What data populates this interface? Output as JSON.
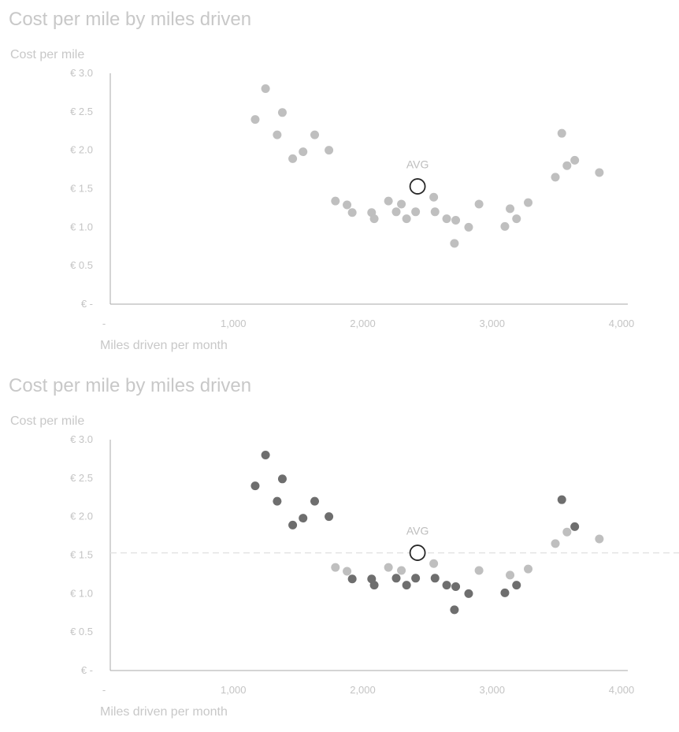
{
  "chart_data": [
    {
      "type": "scatter",
      "title": "Cost per mile by miles driven",
      "xlabel": "Miles driven per month",
      "ylabel": "Cost per mile",
      "xlim": [
        0,
        4000
      ],
      "ylim": [
        0,
        3.0
      ],
      "x_ticks": [
        {
          "value": 0,
          "label": "-"
        },
        {
          "value": 1000,
          "label": "1,000"
        },
        {
          "value": 2000,
          "label": "2,000"
        },
        {
          "value": 3000,
          "label": "3,000"
        },
        {
          "value": 4000,
          "label": "4,000"
        }
      ],
      "y_ticks": [
        {
          "value": 0,
          "label": "€ -"
        },
        {
          "value": 0.5,
          "label": "€ 0.5"
        },
        {
          "value": 1.0,
          "label": "€ 1.0"
        },
        {
          "value": 1.5,
          "label": "€ 1.5"
        },
        {
          "value": 2.0,
          "label": "€ 2.0"
        },
        {
          "value": 2.5,
          "label": "€ 2.5"
        },
        {
          "value": 3.0,
          "label": "€ 3.0"
        }
      ],
      "grid": false,
      "avg": {
        "label": "AVG",
        "x": 2375,
        "y": 1.53
      },
      "show_avg_line": false,
      "point_color": "#bfbfbf",
      "highlight_color": "#6e6e6e",
      "highlight": false,
      "series": [
        {
          "points": [
            [
              1120,
              2.4
            ],
            [
              1200,
              2.8
            ],
            [
              1290,
              2.2
            ],
            [
              1330,
              2.49
            ],
            [
              1410,
              1.89
            ],
            [
              1490,
              1.98
            ],
            [
              1580,
              2.2
            ],
            [
              1690,
              2.0
            ],
            [
              1740,
              1.34
            ],
            [
              1830,
              1.29
            ],
            [
              1870,
              1.19
            ],
            [
              2020,
              1.19
            ],
            [
              2040,
              1.11
            ],
            [
              2150,
              1.34
            ],
            [
              2210,
              1.2
            ],
            [
              2250,
              1.3
            ],
            [
              2290,
              1.11
            ],
            [
              2360,
              1.2
            ],
            [
              2500,
              1.39
            ],
            [
              2510,
              1.2
            ],
            [
              2600,
              1.11
            ],
            [
              2670,
              1.09
            ],
            [
              2660,
              0.79
            ],
            [
              2770,
              1.0
            ],
            [
              2850,
              1.3
            ],
            [
              3050,
              1.01
            ],
            [
              3090,
              1.24
            ],
            [
              3140,
              1.11
            ],
            [
              3230,
              1.32
            ],
            [
              3440,
              1.65
            ],
            [
              3490,
              2.22
            ],
            [
              3530,
              1.8
            ],
            [
              3590,
              1.87
            ],
            [
              3780,
              1.71
            ]
          ]
        }
      ]
    },
    {
      "type": "scatter",
      "title": "Cost per mile by miles driven",
      "xlabel": "Miles driven per month",
      "ylabel": "Cost per mile",
      "xlim": [
        0,
        4000
      ],
      "ylim": [
        0,
        3.0
      ],
      "x_ticks": [
        {
          "value": 0,
          "label": "-"
        },
        {
          "value": 1000,
          "label": "1,000"
        },
        {
          "value": 2000,
          "label": "2,000"
        },
        {
          "value": 3000,
          "label": "3,000"
        },
        {
          "value": 4000,
          "label": "4,000"
        }
      ],
      "y_ticks": [
        {
          "value": 0,
          "label": "€ -"
        },
        {
          "value": 0.5,
          "label": "€ 0.5"
        },
        {
          "value": 1.0,
          "label": "€ 1.0"
        },
        {
          "value": 1.5,
          "label": "€ 1.5"
        },
        {
          "value": 2.0,
          "label": "€ 2.0"
        },
        {
          "value": 2.5,
          "label": "€ 2.5"
        },
        {
          "value": 3.0,
          "label": "€ 3.0"
        }
      ],
      "grid": false,
      "avg": {
        "label": "AVG",
        "x": 2375,
        "y": 1.53
      },
      "show_avg_line": true,
      "point_color": "#bfbfbf",
      "highlight_color": "#6e6e6e",
      "highlight": true,
      "series": [
        {
          "points": [
            [
              1120,
              2.4
            ],
            [
              1200,
              2.8
            ],
            [
              1290,
              2.2
            ],
            [
              1330,
              2.49
            ],
            [
              1410,
              1.89
            ],
            [
              1490,
              1.98
            ],
            [
              1580,
              2.2
            ],
            [
              1690,
              2.0
            ],
            [
              1740,
              1.34
            ],
            [
              1830,
              1.29
            ],
            [
              1870,
              1.19
            ],
            [
              2020,
              1.19
            ],
            [
              2040,
              1.11
            ],
            [
              2150,
              1.34
            ],
            [
              2210,
              1.2
            ],
            [
              2250,
              1.3
            ],
            [
              2290,
              1.11
            ],
            [
              2360,
              1.2
            ],
            [
              2500,
              1.39
            ],
            [
              2510,
              1.2
            ],
            [
              2600,
              1.11
            ],
            [
              2670,
              1.09
            ],
            [
              2660,
              0.79
            ],
            [
              2770,
              1.0
            ],
            [
              2850,
              1.3
            ],
            [
              3050,
              1.01
            ],
            [
              3090,
              1.24
            ],
            [
              3140,
              1.11
            ],
            [
              3230,
              1.32
            ],
            [
              3440,
              1.65
            ],
            [
              3490,
              2.22
            ],
            [
              3530,
              1.8
            ],
            [
              3590,
              1.87
            ],
            [
              3780,
              1.71
            ]
          ]
        }
      ]
    }
  ]
}
